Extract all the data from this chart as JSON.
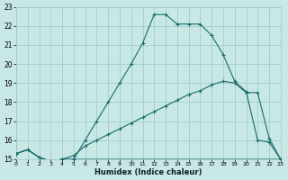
{
  "bg_color": "#c8e8e6",
  "grid_color": "#9ec8c6",
  "line_color": "#1a6b6b",
  "xlabel": "Humidex (Indice chaleur)",
  "xlim": [
    0,
    23
  ],
  "ylim": [
    15,
    23
  ],
  "xtick_vals": [
    0,
    1,
    2,
    3,
    4,
    5,
    6,
    7,
    8,
    9,
    10,
    11,
    12,
    13,
    14,
    15,
    16,
    17,
    18,
    19,
    20,
    21,
    22,
    23
  ],
  "ytick_vals": [
    15,
    16,
    17,
    18,
    19,
    20,
    21,
    22,
    23
  ],
  "line1_x": [
    0,
    1,
    2,
    3,
    4,
    5,
    6,
    7,
    8,
    9,
    10,
    11,
    12,
    13,
    14,
    15,
    16,
    17,
    18,
    19,
    20,
    21,
    22,
    23
  ],
  "line1_y": [
    15.3,
    15.5,
    15.1,
    14.9,
    15.0,
    15.0,
    16.0,
    17.0,
    18.0,
    19.0,
    20.0,
    21.1,
    22.6,
    22.6,
    22.1,
    22.1,
    22.1,
    21.5,
    20.5,
    19.1,
    18.55,
    16.0,
    15.9,
    15.0
  ],
  "line2_x": [
    0,
    1,
    2,
    3,
    4,
    5,
    6,
    7,
    8,
    9,
    10,
    11,
    12,
    13,
    14,
    15,
    16,
    17,
    18,
    19,
    20,
    21,
    22,
    23
  ],
  "line2_y": [
    15.3,
    15.5,
    15.1,
    14.9,
    15.0,
    15.2,
    15.7,
    16.0,
    16.3,
    16.6,
    16.9,
    17.2,
    17.5,
    17.8,
    18.1,
    18.4,
    18.6,
    18.9,
    19.1,
    19.0,
    18.5,
    18.5,
    16.1,
    15.0
  ],
  "line3_x": [
    0,
    1,
    2,
    3,
    4,
    5,
    10,
    15,
    20,
    21,
    22,
    23
  ],
  "line3_y": [
    15.3,
    15.5,
    15.1,
    14.9,
    15.0,
    15.0,
    15.0,
    15.0,
    15.0,
    15.0,
    15.0,
    15.0
  ],
  "figsize": [
    3.2,
    2.0
  ],
  "dpi": 100
}
